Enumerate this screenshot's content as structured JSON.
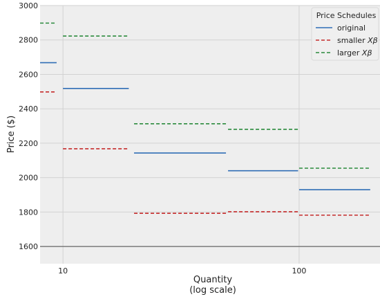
{
  "chart_data": {
    "type": "line",
    "xlabel_line1": "Quantity",
    "xlabel_line2": "(log scale)",
    "ylabel": "Price ($)",
    "xscale": "log",
    "xlim": [
      8,
      220
    ],
    "ylim": [
      1500,
      3000
    ],
    "x_ticks": [
      10,
      100
    ],
    "x_tick_labels": [
      "10",
      "100"
    ],
    "y_ticks": [
      1600,
      1800,
      2000,
      2200,
      2400,
      2600,
      2800,
      3000
    ],
    "y_tick_labels": [
      "1600",
      "1800",
      "2000",
      "2200",
      "2400",
      "2600",
      "2800",
      "3000"
    ],
    "grid": true,
    "reference_line_y": 1600,
    "legend": {
      "title": "Price Schedules",
      "placement": "top-right",
      "entries": [
        {
          "label_pre": "original",
          "label_math": ""
        },
        {
          "label_pre": "smaller ",
          "label_math": "Xβ"
        },
        {
          "label_pre": "larger ",
          "label_math": "Xβ"
        }
      ]
    },
    "series": [
      {
        "name": "original",
        "color": "#2f6db5",
        "dash": "solid",
        "segments": [
          {
            "x0": 8,
            "x1": 9.4,
            "y": 2668
          },
          {
            "x0": 10,
            "x1": 19,
            "y": 2518
          },
          {
            "x0": 20,
            "x1": 49,
            "y": 2143
          },
          {
            "x0": 50,
            "x1": 99,
            "y": 2040
          },
          {
            "x0": 100,
            "x1": 200,
            "y": 1930
          }
        ]
      },
      {
        "name": "smaller Xβ",
        "color": "#c52a2a",
        "dash": "dashed",
        "segments": [
          {
            "x0": 8,
            "x1": 9.4,
            "y": 2498
          },
          {
            "x0": 10,
            "x1": 19,
            "y": 2168
          },
          {
            "x0": 20,
            "x1": 49,
            "y": 1793
          },
          {
            "x0": 50,
            "x1": 99,
            "y": 1802
          },
          {
            "x0": 100,
            "x1": 200,
            "y": 1782
          }
        ]
      },
      {
        "name": "larger Xβ",
        "color": "#2a8a3c",
        "dash": "dashed",
        "segments": [
          {
            "x0": 8,
            "x1": 9.4,
            "y": 2898
          },
          {
            "x0": 10,
            "x1": 19,
            "y": 2823
          },
          {
            "x0": 20,
            "x1": 49,
            "y": 2313
          },
          {
            "x0": 50,
            "x1": 99,
            "y": 2281
          },
          {
            "x0": 100,
            "x1": 200,
            "y": 2055
          }
        ]
      }
    ]
  }
}
